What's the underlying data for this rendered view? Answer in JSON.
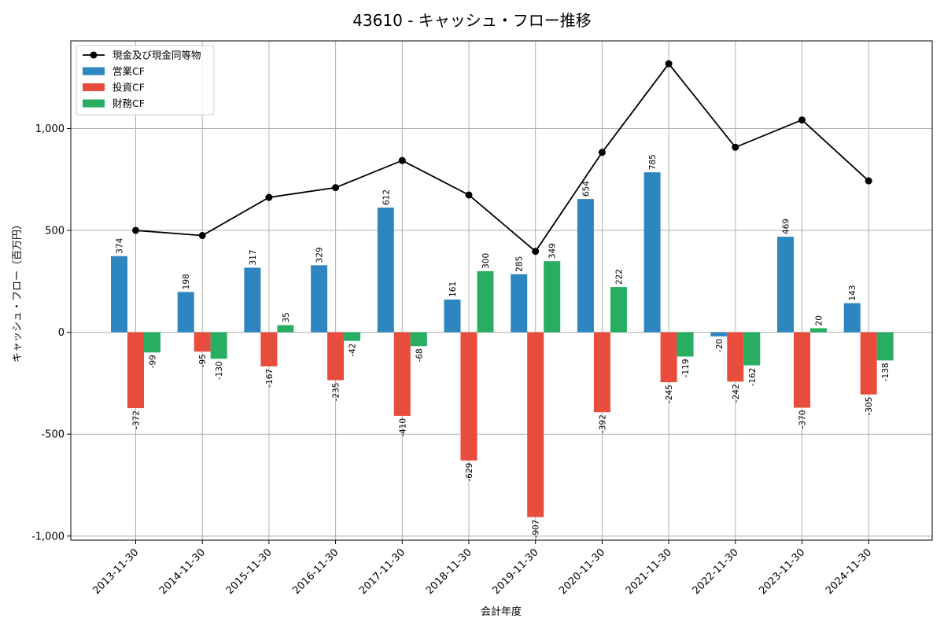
{
  "chart_data": {
    "type": "bar",
    "title": "43610 - キャッシュ・フロー推移",
    "xlabel": "会計年度",
    "ylabel": "キャッシュ・フロー（百万円）",
    "ylim": [
      -1020,
      1430
    ],
    "yticks": [
      -1000,
      -500,
      0,
      500,
      1000
    ],
    "ytick_labels": [
      "-1,000",
      "-500",
      "0",
      "500",
      "1,000"
    ],
    "grid": true,
    "legend_position": "top-left",
    "categories": [
      "2013-11-30",
      "2014-11-30",
      "2015-11-30",
      "2016-11-30",
      "2017-11-30",
      "2018-11-30",
      "2019-11-30",
      "2020-11-30",
      "2021-11-30",
      "2022-11-30",
      "2023-11-30",
      "2024-11-30"
    ],
    "series": [
      {
        "name": "営業CF",
        "kind": "bar",
        "color": "#2e86c1",
        "values": [
          374,
          198,
          317,
          329,
          612,
          161,
          285,
          654,
          785,
          -20,
          469,
          143
        ]
      },
      {
        "name": "投資CF",
        "kind": "bar",
        "color": "#e74c3c",
        "values": [
          -372,
          -95,
          -167,
          -235,
          -410,
          -629,
          -907,
          -392,
          -245,
          -242,
          -370,
          -305
        ]
      },
      {
        "name": "財務CF",
        "kind": "bar",
        "color": "#27ae60",
        "values": [
          -99,
          -130,
          35,
          -42,
          -68,
          300,
          349,
          222,
          -119,
          -162,
          20,
          -138
        ]
      },
      {
        "name": "現金及び現金同等物",
        "kind": "line",
        "color": "#000000",
        "values": [
          500,
          475,
          662,
          710,
          843,
          674,
          397,
          883,
          1318,
          908,
          1042,
          743
        ]
      }
    ]
  }
}
